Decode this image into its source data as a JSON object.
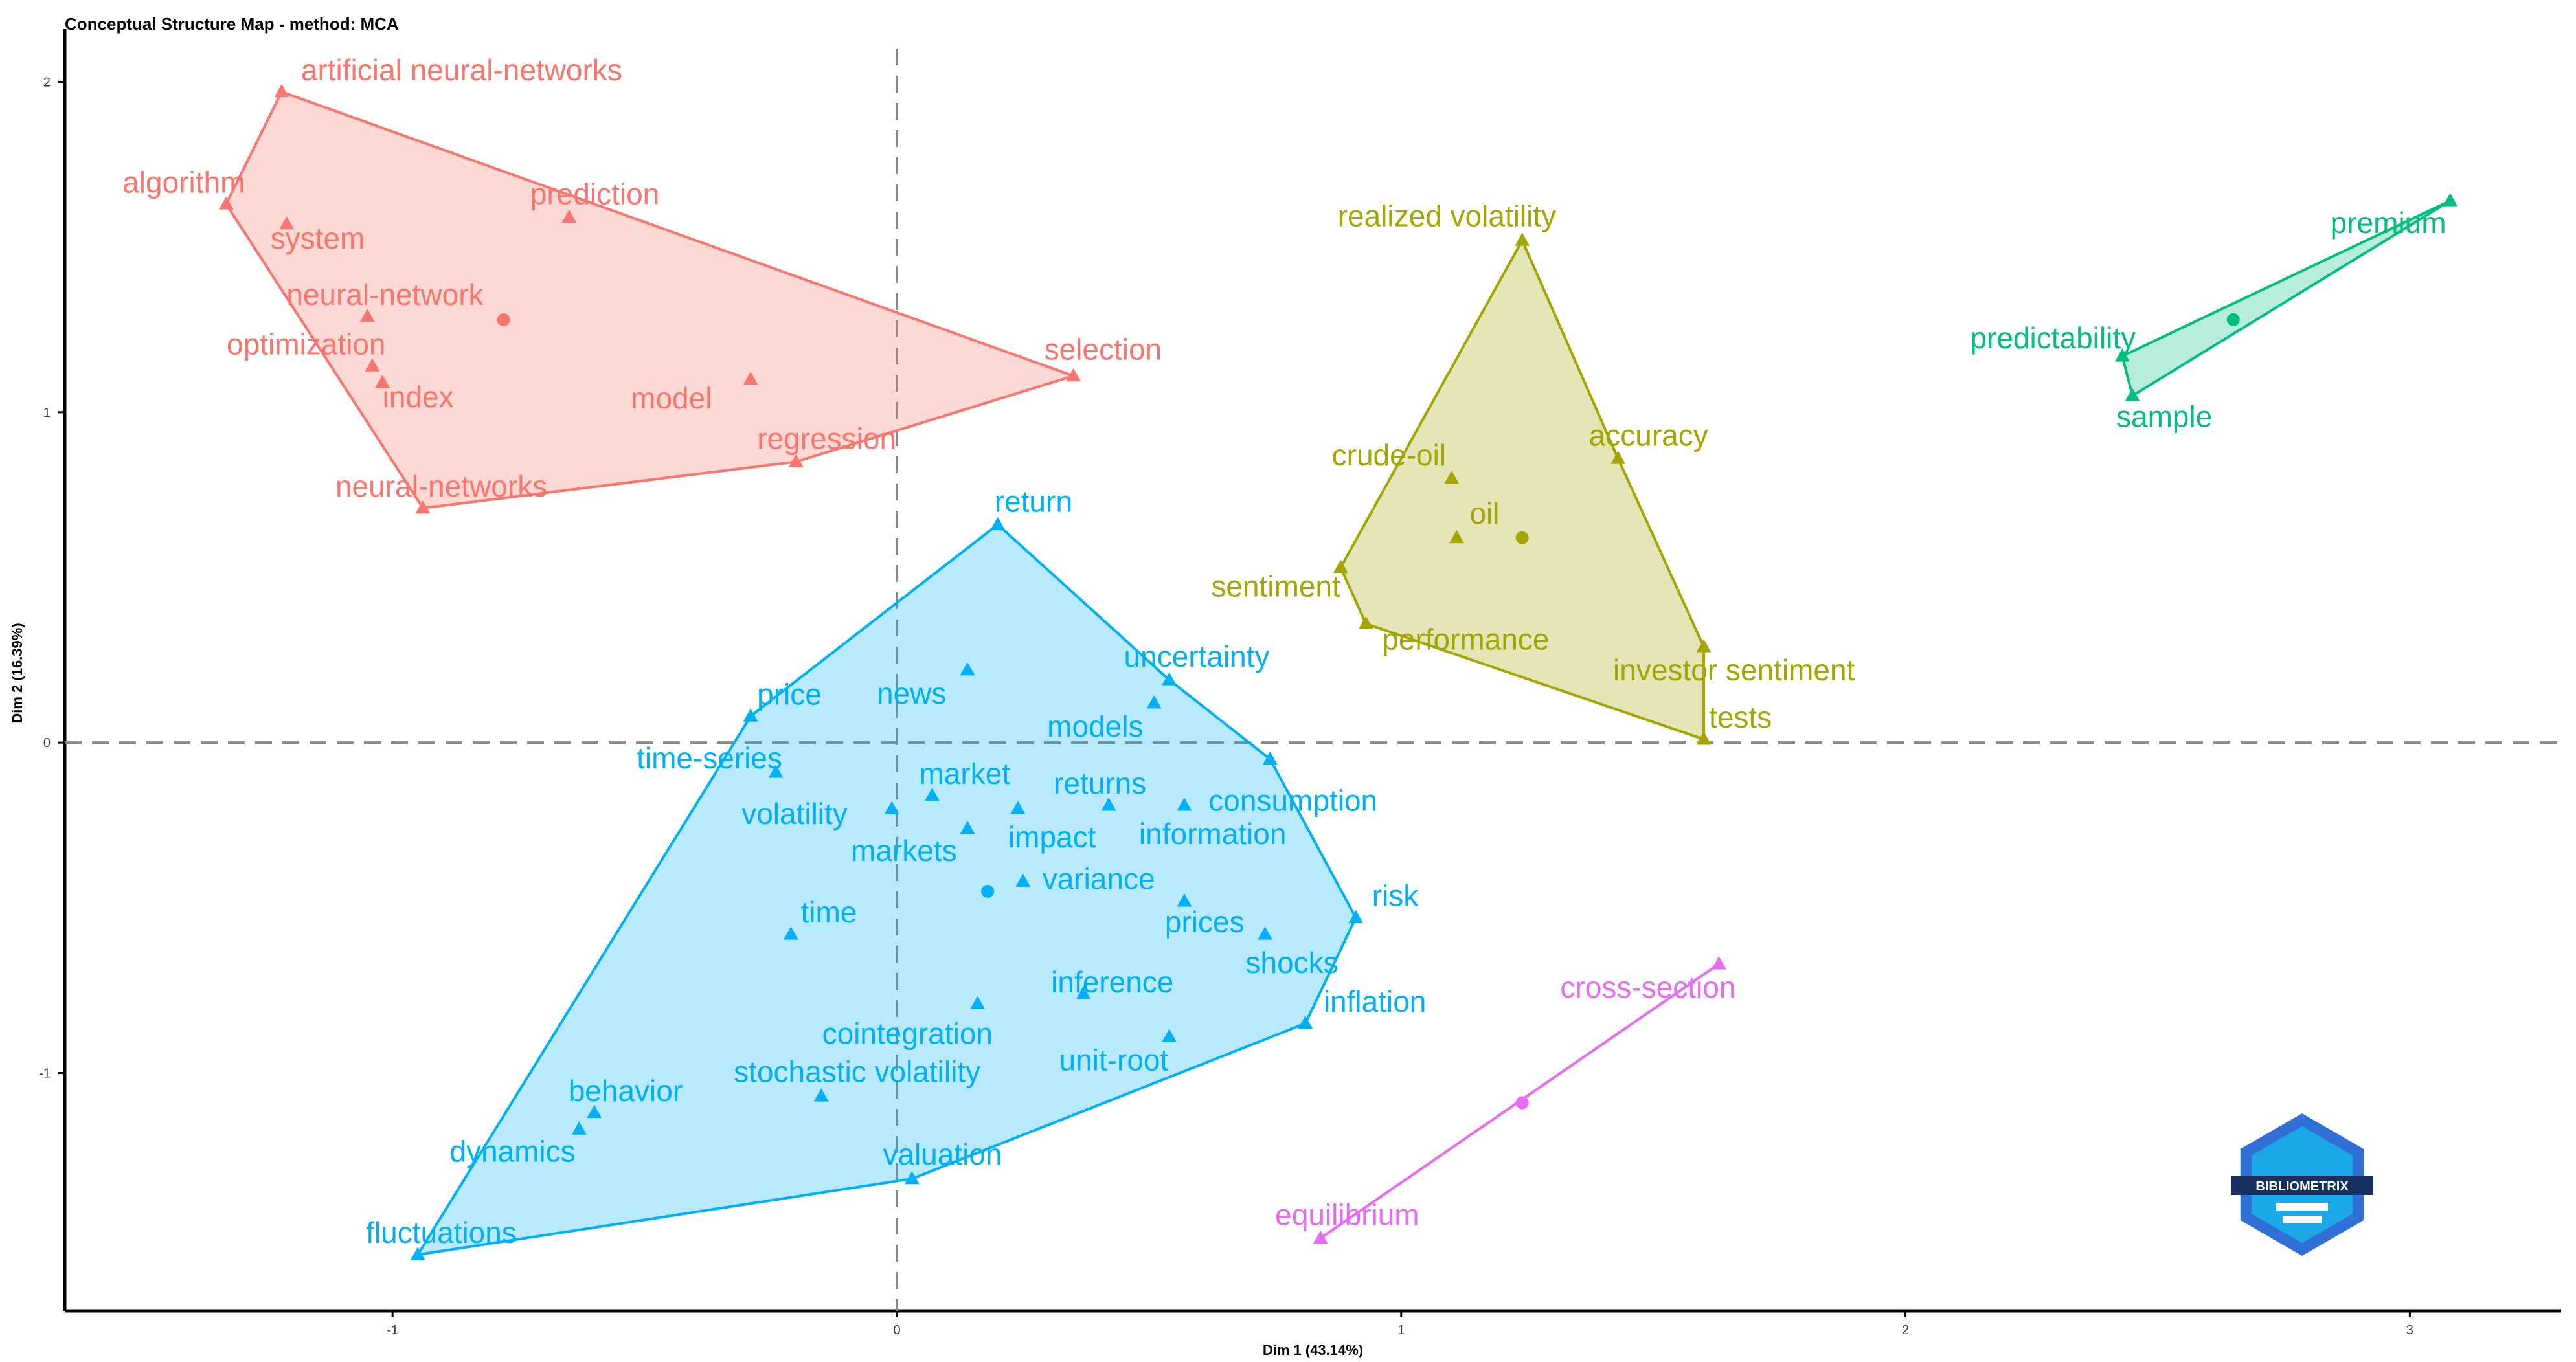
{
  "chart_data": {
    "type": "scatter",
    "title": "Conceptual Structure Map - method: MCA",
    "xlabel": "Dim 1 (43.14%)",
    "ylabel": "Dim 2 (16.39%)",
    "xlim": [
      -1.65,
      3.3
    ],
    "ylim": [
      -1.72,
      2.14
    ],
    "x_ticks": [
      -1,
      0,
      1,
      2,
      3
    ],
    "y_ticks": [
      -1,
      0,
      1,
      2
    ],
    "reference_lines": {
      "x": 0,
      "y": 0,
      "style": "dashed"
    },
    "grid": false,
    "legend": "none",
    "logo": "BIBLIOMETRIX",
    "clusters": [
      {
        "color": "#F8766D",
        "centroid": [
          -0.78,
          1.28
        ],
        "hull": [
          "algorithm",
          "artificial neural-networks",
          "selection",
          "regression",
          "neural-networks"
        ],
        "points": [
          {
            "label": "artificial neural-networks",
            "x": -1.22,
            "y": 1.97
          },
          {
            "label": "algorithm",
            "x": -1.33,
            "y": 1.63
          },
          {
            "label": "system",
            "x": -1.21,
            "y": 1.57
          },
          {
            "label": "prediction",
            "x": -0.65,
            "y": 1.59
          },
          {
            "label": "neural-network",
            "x": -1.05,
            "y": 1.29
          },
          {
            "label": "optimization",
            "x": -1.04,
            "y": 1.14
          },
          {
            "label": "index",
            "x": -1.02,
            "y": 1.09
          },
          {
            "label": "model",
            "x": -0.29,
            "y": 1.1
          },
          {
            "label": "selection",
            "x": 0.35,
            "y": 1.11
          },
          {
            "label": "regression",
            "x": -0.2,
            "y": 0.85
          },
          {
            "label": "neural-networks",
            "x": -0.94,
            "y": 0.71
          }
        ]
      },
      {
        "color": "#A3A500",
        "centroid": [
          1.24,
          0.62
        ],
        "hull": [
          "realized volatility",
          "accuracy",
          "investor sentiment",
          "tests",
          "performance",
          "sentiment"
        ],
        "points": [
          {
            "label": "realized volatility",
            "x": 1.24,
            "y": 1.52
          },
          {
            "label": "accuracy",
            "x": 1.43,
            "y": 0.86
          },
          {
            "label": "crude-oil",
            "x": 1.1,
            "y": 0.8
          },
          {
            "label": "oil",
            "x": 1.11,
            "y": 0.62
          },
          {
            "label": "sentiment",
            "x": 0.88,
            "y": 0.53
          },
          {
            "label": "performance",
            "x": 0.93,
            "y": 0.36
          },
          {
            "label": "investor sentiment",
            "x": 1.6,
            "y": 0.29
          },
          {
            "label": "tests",
            "x": 1.6,
            "y": 0.01
          }
        ]
      },
      {
        "color": "#00BF7D",
        "centroid": [
          2.65,
          1.28
        ],
        "hull": [
          "premium",
          "predictability",
          "sample"
        ],
        "points": [
          {
            "label": "premium",
            "x": 3.08,
            "y": 1.64
          },
          {
            "label": "predictability",
            "x": 2.43,
            "y": 1.17
          },
          {
            "label": "sample",
            "x": 2.45,
            "y": 1.05
          }
        ]
      },
      {
        "color": "#00B0F6",
        "centroid": [
          0.18,
          -0.45
        ],
        "hull": [
          "return",
          "uncertainty",
          "consumption",
          "risk",
          "inflation",
          "valuation",
          "fluctuations",
          "price"
        ],
        "points": [
          {
            "label": "return",
            "x": 0.2,
            "y": 0.66
          },
          {
            "label": "news",
            "x": 0.14,
            "y": 0.22
          },
          {
            "label": "uncertainty",
            "x": 0.54,
            "y": 0.19
          },
          {
            "label": "price",
            "x": -0.29,
            "y": 0.08
          },
          {
            "label": "models",
            "x": 0.51,
            "y": 0.12
          },
          {
            "label": "consumption",
            "x": 0.74,
            "y": -0.05
          },
          {
            "label": "time-series",
            "x": -0.24,
            "y": -0.09
          },
          {
            "label": "market",
            "x": 0.07,
            "y": -0.16
          },
          {
            "label": "volatility",
            "x": -0.01,
            "y": -0.2
          },
          {
            "label": "returns",
            "x": 0.42,
            "y": -0.19
          },
          {
            "label": "impact",
            "x": 0.24,
            "y": -0.2
          },
          {
            "label": "information",
            "x": 0.57,
            "y": -0.19
          },
          {
            "label": "markets",
            "x": 0.14,
            "y": -0.26
          },
          {
            "label": "variance",
            "x": 0.25,
            "y": -0.42
          },
          {
            "label": "risk",
            "x": 0.91,
            "y": -0.53
          },
          {
            "label": "prices",
            "x": 0.57,
            "y": -0.48
          },
          {
            "label": "time",
            "x": -0.21,
            "y": -0.58
          },
          {
            "label": "shocks",
            "x": 0.73,
            "y": -0.58
          },
          {
            "label": "inference",
            "x": 0.37,
            "y": -0.76
          },
          {
            "label": "cointegration",
            "x": 0.16,
            "y": -0.79
          },
          {
            "label": "inflation",
            "x": 0.81,
            "y": -0.85
          },
          {
            "label": "unit-root",
            "x": 0.54,
            "y": -0.89
          },
          {
            "label": "stochastic volatility",
            "x": -0.15,
            "y": -1.07
          },
          {
            "label": "behavior",
            "x": -0.6,
            "y": -1.12
          },
          {
            "label": "dynamics",
            "x": -0.63,
            "y": -1.17
          },
          {
            "label": "valuation",
            "x": 0.03,
            "y": -1.32
          },
          {
            "label": "fluctuations",
            "x": -0.95,
            "y": -1.55
          }
        ]
      },
      {
        "color": "#E76BF3",
        "centroid": [
          1.24,
          -1.09
        ],
        "hull": [
          "cross-section",
          "equilibrium"
        ],
        "points": [
          {
            "label": "cross-section",
            "x": 1.63,
            "y": -0.67
          },
          {
            "label": "equilibrium",
            "x": 0.84,
            "y": -1.5
          }
        ]
      }
    ]
  }
}
